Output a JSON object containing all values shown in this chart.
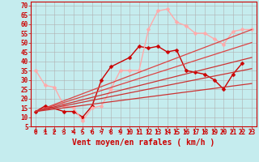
{
  "background_color": "#c5ecee",
  "grid_color": "#b0b0b0",
  "xlabel": "Vent moyen/en rafales ( km/h )",
  "xlabel_color": "#cc0000",
  "xlabel_fontsize": 7,
  "xtick_color": "#cc0000",
  "ytick_color": "#cc0000",
  "ytick_values": [
    5,
    10,
    15,
    20,
    25,
    30,
    35,
    40,
    45,
    50,
    55,
    60,
    65,
    70
  ],
  "ylim": [
    5,
    72
  ],
  "xlim": [
    -0.5,
    23.5
  ],
  "lines": [
    {
      "x": [
        0,
        1,
        3,
        4,
        5,
        6,
        7,
        8,
        10,
        11,
        12,
        13,
        14,
        15,
        16,
        17,
        18,
        19,
        20,
        21,
        22
      ],
      "y": [
        13,
        16,
        13,
        13,
        10,
        16,
        30,
        37,
        42,
        48,
        47,
        48,
        45,
        46,
        35,
        34,
        33,
        30,
        25,
        33,
        39
      ],
      "color": "#cc0000",
      "linewidth": 1.0,
      "marker": "D",
      "markersize": 2.5
    },
    {
      "x": [
        0,
        1,
        2,
        3,
        4,
        5,
        6,
        7,
        8,
        9,
        10,
        11,
        12,
        13,
        14,
        15,
        16,
        17,
        18,
        19,
        20,
        21,
        22,
        23
      ],
      "y": [
        35,
        27,
        26,
        16,
        15,
        8,
        15,
        16,
        25,
        35,
        35,
        35,
        57,
        67,
        68,
        61,
        59,
        55,
        55,
        52,
        49,
        56,
        57,
        57
      ],
      "color": "#ffaaaa",
      "linewidth": 1.0,
      "marker": "D",
      "markersize": 2.5
    },
    {
      "x": [
        0,
        23
      ],
      "y": [
        13,
        57
      ],
      "color": "#dd4444",
      "linewidth": 0.9,
      "marker": null,
      "markersize": 0
    },
    {
      "x": [
        0,
        23
      ],
      "y": [
        13,
        50
      ],
      "color": "#dd4444",
      "linewidth": 0.9,
      "marker": null,
      "markersize": 0
    },
    {
      "x": [
        0,
        23
      ],
      "y": [
        13,
        42
      ],
      "color": "#cc3333",
      "linewidth": 0.9,
      "marker": null,
      "markersize": 0
    },
    {
      "x": [
        0,
        23
      ],
      "y": [
        13,
        36
      ],
      "color": "#cc3333",
      "linewidth": 0.9,
      "marker": null,
      "markersize": 0
    },
    {
      "x": [
        0,
        23
      ],
      "y": [
        13,
        28
      ],
      "color": "#cc3333",
      "linewidth": 0.9,
      "marker": null,
      "markersize": 0
    }
  ],
  "tick_fontsize": 5.5,
  "figwidth": 3.2,
  "figheight": 2.0,
  "dpi": 100
}
